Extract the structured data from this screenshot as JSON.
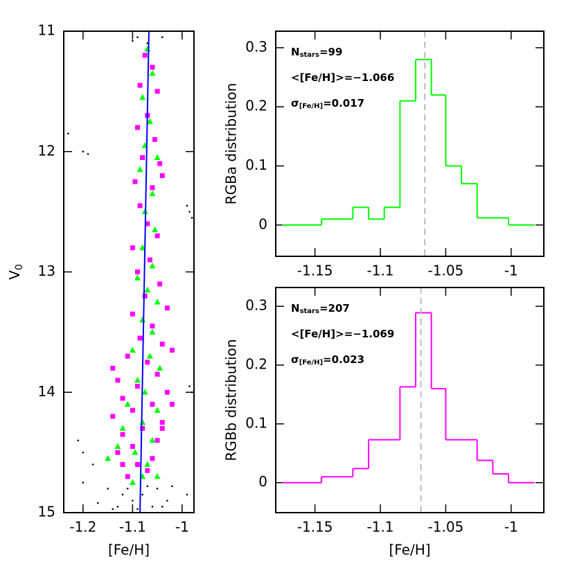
{
  "chart_data": [
    {
      "type": "scatter",
      "xlabel": "[Fe/H]",
      "ylabel": [
        "V",
        "0"
      ],
      "xlim": [
        -1.239,
        -0.976
      ],
      "ylim": [
        11,
        15
      ],
      "y_inverted": true,
      "xticks": [
        -1.2,
        -1.1,
        -1
      ],
      "yticks": [
        11,
        12,
        13,
        14,
        15
      ],
      "series": [
        {
          "marker": "dot",
          "color": "#000000",
          "x": [
            -1.09,
            -1.1,
            -1.07,
            -1.04,
            -1.23,
            -1.2,
            -1.19,
            -0.99,
            -0.985,
            -0.98,
            -0.98,
            -0.985,
            -1.21,
            -1.2,
            -1.18,
            -1.2,
            -1.15,
            -1.12,
            -1.1,
            -1.08,
            -1.05,
            -1.03,
            -1.13,
            -1.09,
            -1.06,
            -1.17,
            -1.02,
            -1.11,
            -1.04,
            -0.99,
            -1.07,
            -1.14
          ],
          "y": [
            11.05,
            11.08,
            11.1,
            11.05,
            11.85,
            12.0,
            12.02,
            12.45,
            12.5,
            12.55,
            14.0,
            13.95,
            14.4,
            14.5,
            14.6,
            14.75,
            14.8,
            14.85,
            14.9,
            14.85,
            14.8,
            14.9,
            14.95,
            14.97,
            14.95,
            14.92,
            14.78,
            14.8,
            14.95,
            14.85,
            14.78,
            14.97
          ]
        },
        {
          "marker": "square",
          "color": "#ff00ff",
          "x": [
            -1.075,
            -1.06,
            -1.085,
            -1.05,
            -1.07,
            -1.09,
            -1.055,
            -1.08,
            -1.045,
            -1.095,
            -1.06,
            -1.04,
            -1.085,
            -1.07,
            -1.05,
            -1.1,
            -1.065,
            -1.09,
            -1.045,
            -1.075,
            -1.03,
            -1.1,
            -1.06,
            -1.085,
            -1.04,
            -1.02,
            -1.11,
            -1.07,
            -1.05,
            -1.13,
            -1.09,
            -1.14,
            -1.03,
            -1.12,
            -1.06,
            -1.1,
            -1.14,
            -1.04,
            -1.08,
            -1.12,
            -1.05,
            -1.1,
            -1.13,
            -1.06,
            -1.09,
            -1.04,
            -1.11,
            -1.07,
            -1.02,
            -1.12
          ],
          "y": [
            11.2,
            11.3,
            11.45,
            11.5,
            11.7,
            11.8,
            11.9,
            12.05,
            12.1,
            12.25,
            12.3,
            12.2,
            12.45,
            12.6,
            12.7,
            12.8,
            12.9,
            13.0,
            13.1,
            13.2,
            13.3,
            13.35,
            13.45,
            13.55,
            13.6,
            13.65,
            13.7,
            13.75,
            13.85,
            13.9,
            13.95,
            13.8,
            14.0,
            14.05,
            14.1,
            14.15,
            14.2,
            14.25,
            14.3,
            14.35,
            14.4,
            14.45,
            14.5,
            14.55,
            14.6,
            14.3,
            14.7,
            14.65,
            14.1,
            14.6
          ]
        },
        {
          "marker": "triangle",
          "color": "#00ff00",
          "x": [
            -1.07,
            -1.06,
            -1.08,
            -1.065,
            -1.075,
            -1.05,
            -1.085,
            -1.06,
            -1.075,
            -1.055,
            -1.08,
            -1.06,
            -1.09,
            -1.07,
            -1.05,
            -1.08,
            -1.06,
            -1.1,
            -1.065,
            -1.045,
            -1.09,
            -1.075,
            -1.11,
            -1.05,
            -1.08,
            -1.12,
            -1.06,
            -1.095,
            -1.15,
            -1.07,
            -1.1,
            -1.05,
            -1.13,
            -1.08
          ],
          "y": [
            11.15,
            11.35,
            11.55,
            11.75,
            11.95,
            12.05,
            12.15,
            12.35,
            12.5,
            12.65,
            12.8,
            12.95,
            13.05,
            13.15,
            13.25,
            13.4,
            13.5,
            13.65,
            13.7,
            13.8,
            13.9,
            14.0,
            14.1,
            14.15,
            14.25,
            14.3,
            14.4,
            14.5,
            14.55,
            14.6,
            14.75,
            14.7,
            14.45,
            14.7
          ]
        },
        {
          "marker": "line",
          "color": "#0000ff",
          "x": [
            -1.067,
            -1.085
          ],
          "y": [
            11,
            15
          ]
        }
      ]
    },
    {
      "type": "histogram",
      "ylabel": "RGBa distribution",
      "color": "#00ff00",
      "xlim": [
        -1.18,
        -0.975
      ],
      "ylim": [
        -0.053,
        0.328
      ],
      "xticks": [
        -1.15,
        -1.1,
        -1.05,
        -1
      ],
      "yticks": [
        0,
        0.1,
        0.2,
        0.3
      ],
      "bins": [
        -1.175,
        -1.145,
        -1.121,
        -1.109,
        -1.097,
        -1.085,
        -1.073,
        -1.061,
        -1.05,
        -1.038,
        -1.026,
        -1.002,
        -0.982
      ],
      "values": [
        0,
        0.01,
        0.03,
        0.01,
        0.03,
        0.21,
        0.28,
        0.22,
        0.1,
        0.07,
        0.012,
        0
      ],
      "mean": -1.066,
      "annotations": [
        [
          "N",
          "stars",
          "=99"
        ],
        [
          "<[Fe/H]>=−1.066"
        ],
        [
          "σ",
          "[Fe/H]",
          "=0.017"
        ]
      ]
    },
    {
      "type": "histogram",
      "ylabel": "RGBb distribution",
      "xlabel": "[Fe/H]",
      "color": "#ff00ff",
      "xlim": [
        -1.18,
        -0.975
      ],
      "ylim": [
        -0.051,
        0.332
      ],
      "xticks": [
        -1.15,
        -1.1,
        -1.05,
        -1
      ],
      "yticks": [
        0,
        0.1,
        0.2,
        0.3
      ],
      "bins": [
        -1.175,
        -1.145,
        -1.121,
        -1.109,
        -1.085,
        -1.073,
        -1.061,
        -1.05,
        -1.026,
        -1.014,
        -1.002,
        -0.982
      ],
      "values": [
        0,
        0.01,
        0.024,
        0.073,
        0.163,
        0.289,
        0.16,
        0.073,
        0.038,
        0.015,
        0
      ],
      "mean": -1.069,
      "annotations": [
        [
          "N",
          "stars",
          "=207"
        ],
        [
          "<[Fe/H]>=−1.069"
        ],
        [
          "σ",
          "[Fe/H]",
          "=0.023"
        ]
      ]
    }
  ]
}
